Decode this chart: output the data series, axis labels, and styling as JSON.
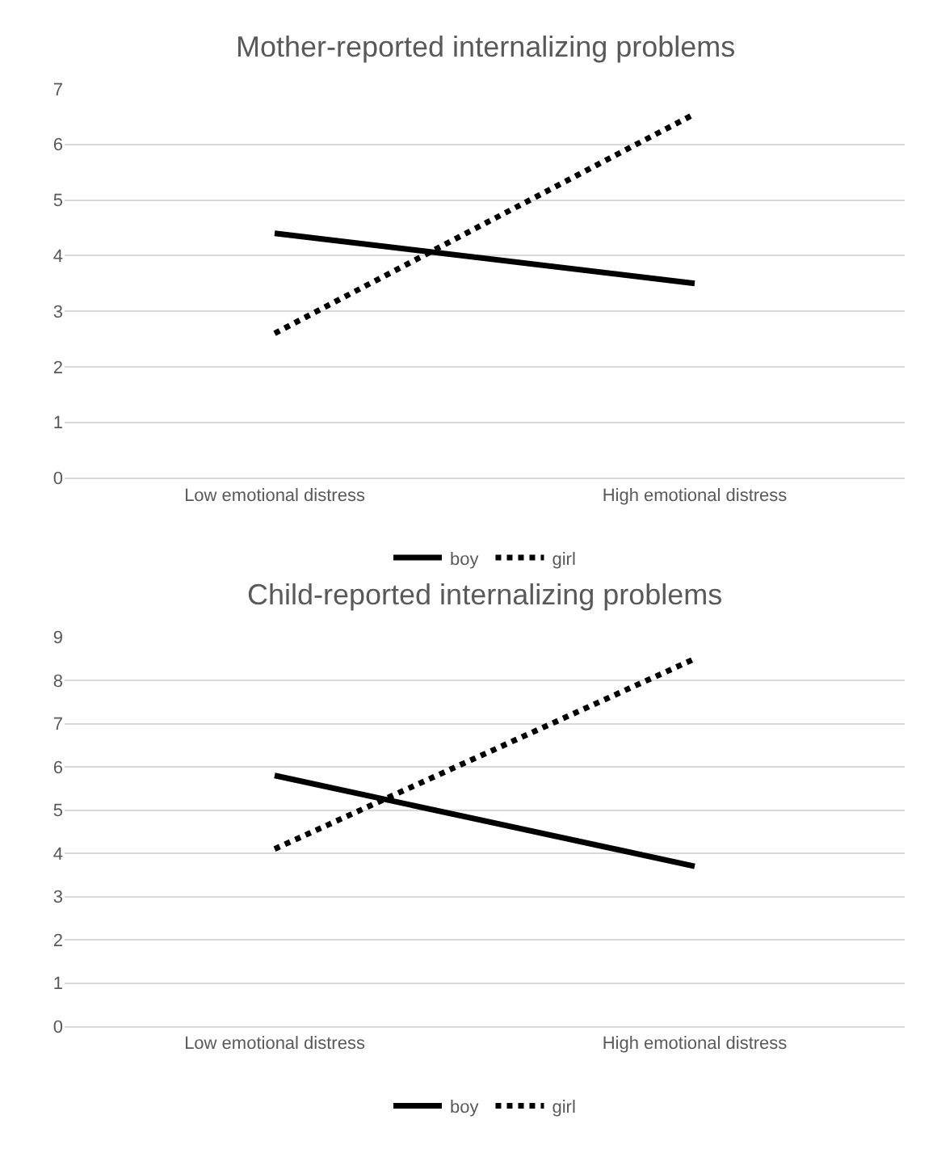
{
  "chart_data": [
    {
      "type": "line",
      "title": "Mother-reported internalizing problems",
      "categories": [
        "Low emotional distress",
        "High emotional distress"
      ],
      "ylim": [
        0,
        7
      ],
      "yticks": [
        0,
        1,
        2,
        3,
        4,
        5,
        6,
        7
      ],
      "grid": "y",
      "legend": "bottom",
      "marker": "none",
      "series": [
        {
          "name": "boy",
          "color": "#000000",
          "line_style": "solid",
          "values": [
            4.4,
            3.5
          ]
        },
        {
          "name": "girl",
          "color": "#000000",
          "line_style": "dotted",
          "values": [
            2.6,
            6.55
          ]
        }
      ]
    },
    {
      "type": "line",
      "title": "Child-reported internalizing problems",
      "categories": [
        "Low emotional distress",
        "High emotional distress"
      ],
      "ylim": [
        0,
        9
      ],
      "yticks": [
        0,
        1,
        2,
        3,
        4,
        5,
        6,
        7,
        8,
        9
      ],
      "grid": "y",
      "legend": "bottom",
      "marker": "none",
      "series": [
        {
          "name": "boy",
          "color": "#000000",
          "line_style": "solid",
          "values": [
            5.8,
            3.7
          ]
        },
        {
          "name": "girl",
          "color": "#000000",
          "line_style": "dotted",
          "values": [
            4.1,
            8.5
          ]
        }
      ]
    }
  ]
}
